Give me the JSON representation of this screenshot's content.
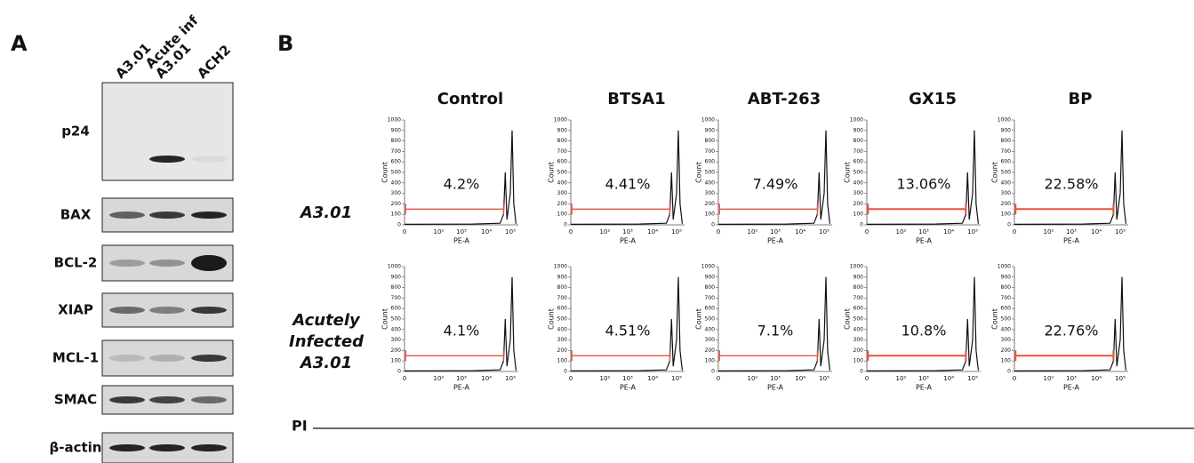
{
  "panel_a": {
    "letter": "A",
    "lanes": [
      [
        "A3.01"
      ],
      [
        "Acute inf",
        "A3.01"
      ],
      [
        "ACH2"
      ]
    ],
    "blots": [
      "p24",
      "BAX",
      "BCL-2",
      "XIAP",
      "MCL-1",
      "SMAC",
      "β-actin"
    ]
  },
  "panel_b": {
    "letter": "B",
    "columns": [
      "Control",
      "BTSA1",
      "ABT-263",
      "GX15",
      "BP"
    ],
    "rows": [
      {
        "label": [
          "A3.01"
        ],
        "gates": [
          "4.2%",
          "4.41%",
          "7.49%",
          "13.06%",
          "22.58%"
        ]
      },
      {
        "label": [
          "Acutely",
          "Infected",
          "A3.01"
        ],
        "gates": [
          "4.1%",
          "4.51%",
          "7.1%",
          "10.8%",
          "22.76%"
        ]
      }
    ],
    "y_axis_label": "Count",
    "x_axis_label": "PE-A",
    "yticks": [
      "0",
      "100",
      "200",
      "300",
      "400",
      "500",
      "600",
      "700",
      "800",
      "900",
      "1000"
    ],
    "xticks": [
      "0",
      "10²",
      "10³",
      "10⁴",
      "10⁵"
    ],
    "stain_label": "PI"
  }
}
